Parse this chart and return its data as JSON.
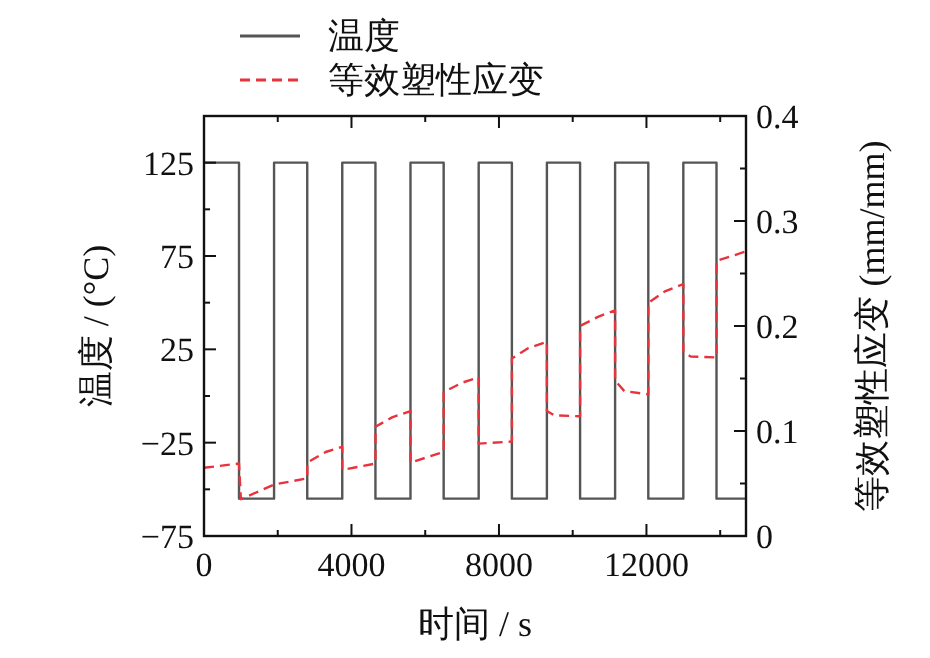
{
  "chart_data": {
    "type": "line",
    "xlabel": "时间 / s",
    "ylabel": "温度 / (°C)",
    "y2label": "等效塑性应变 (mm/mm)",
    "legend": "top",
    "xlim": [
      0,
      14700
    ],
    "xticks": [
      0,
      {
        "value": 2000,
        "label": null
      },
      4000,
      {
        "value": 6000,
        "label": null
      },
      8000,
      {
        "value": 10000,
        "label": null
      },
      12000,
      {
        "value": 14000,
        "label": null
      }
    ],
    "ylim": [
      -75,
      150
    ],
    "yticks": [
      -75,
      {
        "value": -50,
        "label": null
      },
      -25,
      {
        "value": 0,
        "label": null
      },
      25,
      {
        "value": 50,
        "label": null
      },
      75,
      {
        "value": 100,
        "label": null
      },
      125
    ],
    "y2lim": [
      0,
      0.4
    ],
    "y2ticks": [
      0,
      {
        "value": 0.05,
        "label": null
      },
      0.1,
      {
        "value": 0.15,
        "label": null
      },
      0.2,
      {
        "value": 0.25,
        "label": null
      },
      0.3,
      {
        "value": 0.35,
        "label": null
      },
      0.4
    ],
    "series": [
      {
        "name": "温度",
        "color": "#555555",
        "line_style": "solid",
        "x": [
          0,
          950,
          950,
          1900,
          1900,
          2800,
          2800,
          3750,
          3750,
          4650,
          4650,
          5600,
          5600,
          6500,
          6500,
          7450,
          7450,
          8350,
          8350,
          9300,
          9300,
          10200,
          10200,
          11150,
          11150,
          12050,
          12050,
          13000,
          13000,
          13900,
          13900,
          14700
        ],
        "values": [
          125,
          125,
          -55,
          -55,
          125,
          125,
          -55,
          -55,
          125,
          125,
          -55,
          -55,
          125,
          125,
          -55,
          -55,
          125,
          125,
          -55,
          -55,
          125,
          125,
          -55,
          -55,
          125,
          125,
          -55,
          -55,
          125,
          125,
          -55,
          -55
        ]
      },
      {
        "name": "等效塑性应变",
        "color": "#e8333c",
        "line_style": "dashed",
        "axis": "y2",
        "x": [
          0,
          950,
          1000,
          1900,
          2800,
          2800,
          3300,
          3750,
          3750,
          4650,
          4650,
          5100,
          5600,
          5600,
          6500,
          6500,
          7000,
          7450,
          7450,
          8350,
          8350,
          8800,
          9300,
          9300,
          9500,
          10200,
          10200,
          10700,
          11150,
          11150,
          11400,
          12050,
          12050,
          12500,
          13000,
          13000,
          13200,
          13900,
          13900,
          14700
        ],
        "values": [
          0.065,
          0.069,
          0.035,
          0.049,
          0.055,
          0.07,
          0.08,
          0.085,
          0.063,
          0.069,
          0.104,
          0.113,
          0.119,
          0.07,
          0.08,
          0.137,
          0.146,
          0.151,
          0.088,
          0.09,
          0.169,
          0.179,
          0.185,
          0.119,
          0.115,
          0.114,
          0.2,
          0.209,
          0.215,
          0.148,
          0.138,
          0.135,
          0.222,
          0.233,
          0.24,
          0.175,
          0.171,
          0.17,
          0.262,
          0.271
        ]
      }
    ]
  }
}
